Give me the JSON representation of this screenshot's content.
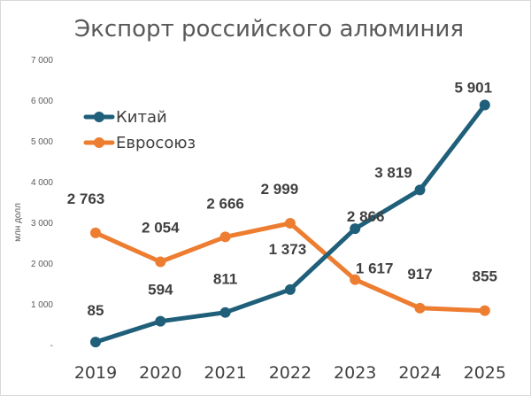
{
  "chart_data": {
    "type": "line",
    "title": "Экспорт российского алюминия",
    "ylabel": "млн долл",
    "xlabel": "",
    "x": [
      "2019",
      "2020",
      "2021",
      "2022",
      "2023",
      "2024",
      "2025"
    ],
    "ylim": [
      0,
      7000
    ],
    "yticks": [
      0,
      1000,
      2000,
      3000,
      4000,
      5000,
      6000,
      7000
    ],
    "ytick_labels": [
      "-",
      "1 000",
      "2 000",
      "3 000",
      "4 000",
      "5 000",
      "6 000",
      "7 000"
    ],
    "grid": false,
    "legend_position": "upper-left",
    "series": [
      {
        "name": "Китай",
        "color": "#1f5f7a",
        "values": [
          85,
          594,
          811,
          1373,
          2866,
          3819,
          5901
        ],
        "labels": [
          "85",
          "594",
          "811",
          "1 373",
          "2 866",
          "3 819",
          "5 901"
        ],
        "label_position": "above"
      },
      {
        "name": "Евросоюз",
        "color": "#ed7d31",
        "values": [
          2763,
          2054,
          2666,
          2999,
          1617,
          917,
          855
        ],
        "labels": [
          "2 763",
          "2 054",
          "2 666",
          "2 999",
          "1 617",
          "917",
          "855"
        ],
        "label_position": "above"
      }
    ]
  }
}
